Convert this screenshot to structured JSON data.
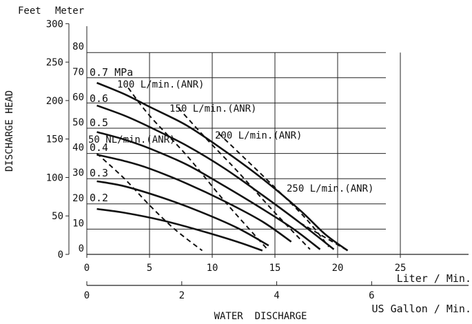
{
  "chart_data": {
    "type": "line",
    "title": "",
    "xlabel": "WATER  DISCHARGE",
    "ylabel": "DISCHARGE  HEAD",
    "x_unit_primary": "Liter / Min.",
    "x_unit_secondary": "US Gallon / Min.",
    "y_unit_left": "Feet",
    "y_unit_right": "Meter",
    "xlim": [
      0,
      30
    ],
    "ylim": [
      0,
      80
    ],
    "x_ticks": [
      0,
      5,
      10,
      15,
      20,
      25
    ],
    "x_secondary_ticks": [
      0,
      2,
      4,
      6
    ],
    "y_meter_ticks": [
      0,
      10,
      20,
      30,
      40,
      50,
      60,
      70,
      80
    ],
    "y_feet_ticks": [
      0,
      50,
      100,
      150,
      200,
      250,
      300
    ],
    "grid": true,
    "pressure_curves": [
      {
        "label": "0.7 MPa",
        "x": [
          0.8,
          3,
          5,
          8,
          11,
          14,
          17,
          19,
          20.8
        ],
        "y": [
          68,
          63.5,
          58.5,
          51,
          41,
          30,
          17.5,
          8,
          1.5
        ]
      },
      {
        "label": "0.6",
        "x": [
          0.8,
          3,
          5,
          8,
          11,
          14,
          17,
          19.7
        ],
        "y": [
          59,
          55,
          50.5,
          43,
          34,
          23.5,
          12.5,
          2
        ]
      },
      {
        "label": "0.5",
        "x": [
          0.8,
          3,
          5,
          8,
          11,
          14,
          16.5,
          18.6
        ],
        "y": [
          48.5,
          45.5,
          42,
          35.5,
          27,
          18,
          10,
          2
        ]
      },
      {
        "label": "0.4",
        "x": [
          0.8,
          3,
          5,
          8,
          11,
          14,
          16.3
        ],
        "y": [
          39.5,
          37,
          34,
          28,
          21,
          13,
          5
        ]
      },
      {
        "label": "0.3",
        "x": [
          0.8,
          3,
          6,
          9,
          12,
          14.5
        ],
        "y": [
          29,
          27,
          22.5,
          17,
          10.5,
          3.5
        ]
      },
      {
        "label": "0.2",
        "x": [
          0.8,
          3,
          6,
          9,
          12,
          14
        ],
        "y": [
          18,
          16.5,
          13.5,
          9.5,
          5,
          1.5
        ]
      }
    ],
    "airflow_curves": [
      {
        "label": "50 NL/min.(ANR)",
        "x": [
          0.8,
          3,
          5,
          7,
          9.2
        ],
        "y": [
          40,
          30,
          19.5,
          10,
          1.5
        ]
      },
      {
        "label": "100 L/min.(ANR)",
        "x": [
          3.3,
          5,
          8,
          11,
          14.4
        ],
        "y": [
          66,
          55,
          39,
          21,
          2
        ]
      },
      {
        "label": "150 L/min.(ANR)",
        "x": [
          7.3,
          9.5,
          12,
          15,
          17.8
        ],
        "y": [
          58,
          46,
          33,
          16.5,
          2
        ]
      },
      {
        "label": "200 L/min.(ANR)",
        "x": [
          10.5,
          12.5,
          15,
          17.5,
          19.3
        ],
        "y": [
          48,
          38.5,
          26.5,
          14,
          3
        ]
      },
      {
        "label": "250 L/min.(ANR)",
        "x": [
          17,
          20.8
        ],
        "y": [
          12.5,
          1.5
        ]
      }
    ]
  }
}
